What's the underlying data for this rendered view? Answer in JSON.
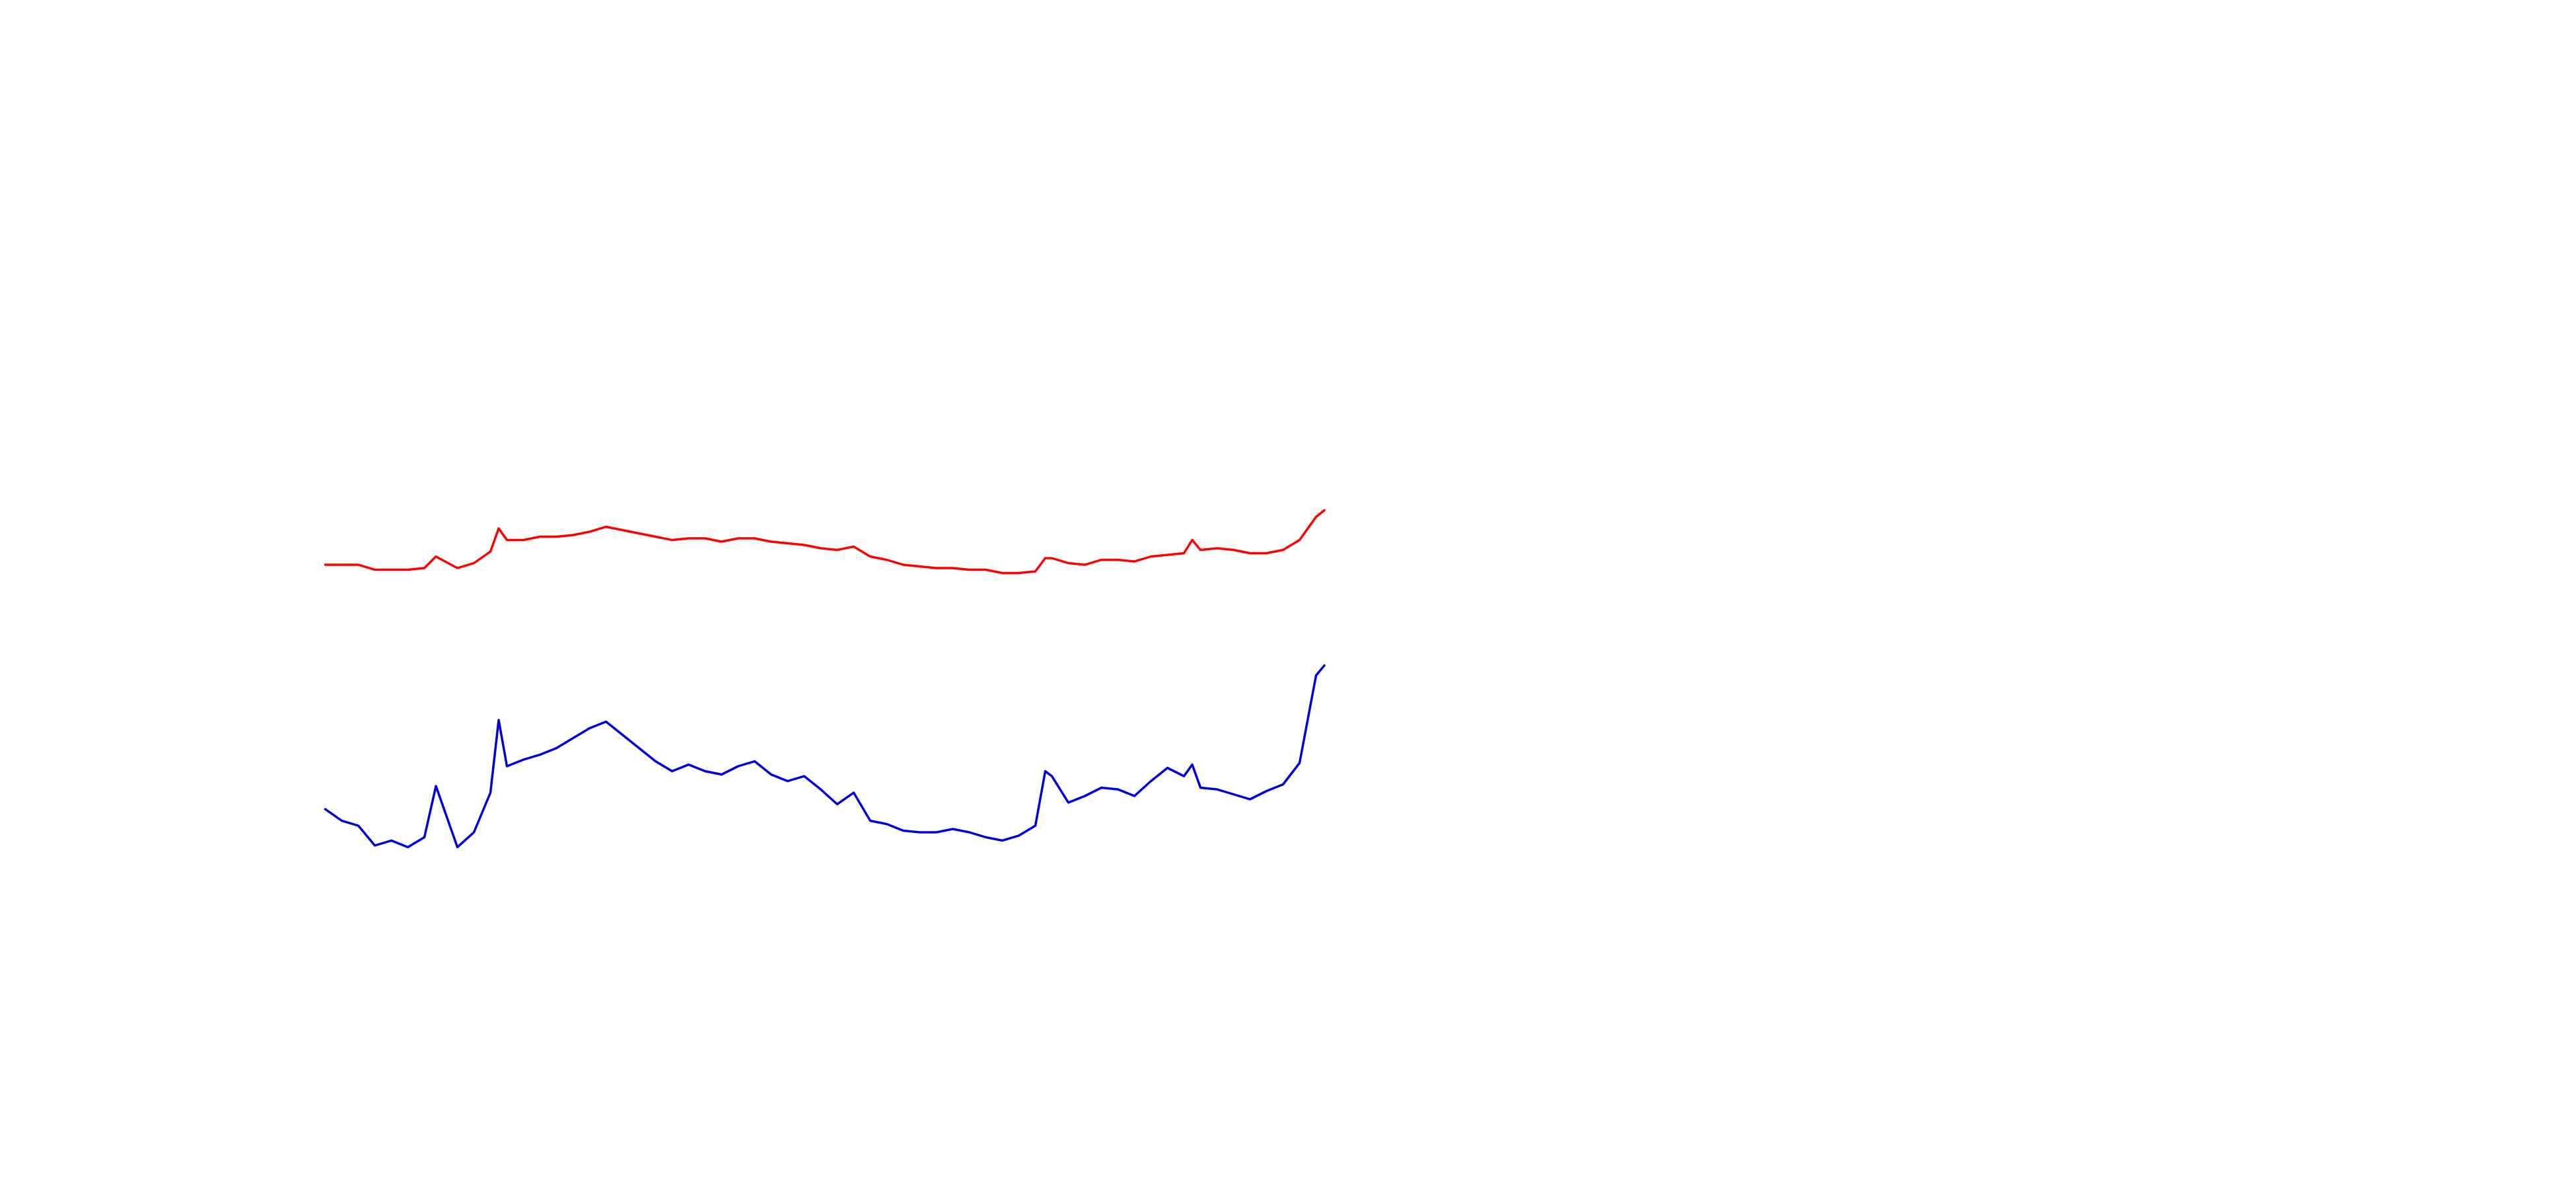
{
  "chart_data": {
    "type": "line",
    "x": [
      0,
      10,
      20,
      30,
      40,
      50,
      60,
      67,
      80,
      90,
      100,
      105,
      110,
      120,
      130,
      140,
      150,
      160,
      170,
      180,
      190,
      200,
      210,
      220,
      230,
      240,
      250,
      260,
      270,
      280,
      290,
      300,
      310,
      320,
      330,
      340,
      350,
      360,
      370,
      380,
      390,
      400,
      410,
      420,
      430,
      436,
      440,
      450,
      460,
      470,
      480,
      490,
      500,
      510,
      520,
      525,
      530,
      540,
      550,
      560,
      570,
      580,
      590,
      600,
      605
    ],
    "xlim": [
      0,
      605
    ],
    "ylim": [
      0,
      720
    ],
    "series": [
      {
        "color": "#ff0000",
        "values": [
          378,
          378,
          378,
          375,
          375,
          375,
          376,
          383,
          376,
          379,
          386,
          400,
          393,
          393,
          395,
          395,
          396,
          398,
          401,
          399,
          397,
          395,
          393,
          394,
          394,
          392,
          394,
          394,
          392,
          391,
          390,
          388,
          387,
          389,
          383,
          381,
          378,
          377,
          376,
          376,
          375,
          375,
          373,
          373,
          374,
          382,
          382,
          379,
          378,
          381,
          381,
          380,
          383,
          384,
          385,
          393,
          387,
          388,
          387,
          385,
          385,
          387,
          393,
          407,
          411
        ]
      },
      {
        "color": "#0000dd",
        "values": [
          230,
          223,
          220,
          208,
          211,
          207,
          213,
          244,
          207,
          216,
          240,
          284,
          256,
          260,
          263,
          267,
          273,
          279,
          283,
          275,
          267,
          259,
          253,
          257,
          253,
          251,
          256,
          259,
          251,
          247,
          250,
          242,
          233,
          240,
          223,
          221,
          217,
          216,
          216,
          218,
          216,
          213,
          211,
          214,
          220,
          253,
          250,
          234,
          238,
          243,
          242,
          238,
          247,
          255,
          250,
          257,
          243,
          242,
          239,
          236,
          241,
          245,
          258,
          311,
          317
        ]
      }
    ]
  }
}
